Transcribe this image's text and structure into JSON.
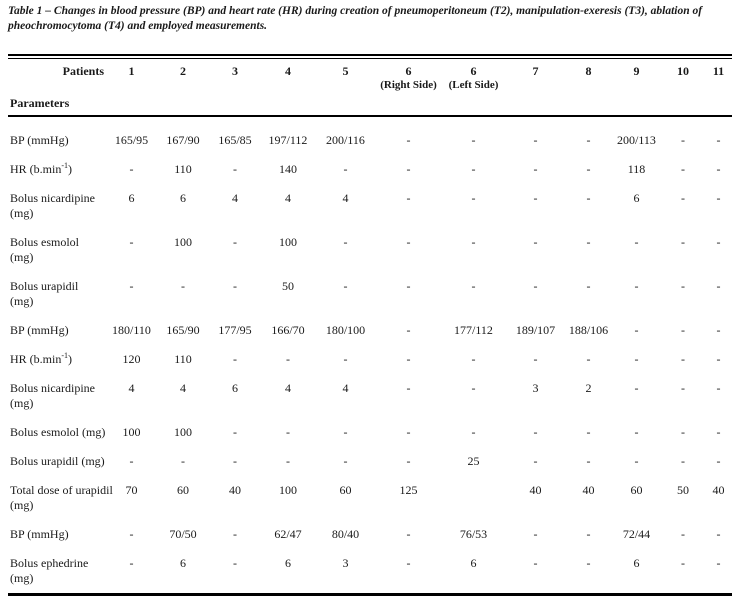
{
  "colors": {
    "ink": "#1a1a1a",
    "background": "#ffffff"
  },
  "caption": {
    "title": "Table 1",
    "text": "– Changes in blood pressure (BP) and heart rate (HR) during creation of pneumoperitoneum (T2), manipulation-exeresis (T3), ablation of pheochromocytoma (T4) and employed measurements."
  },
  "table": {
    "patients_label": "Patients",
    "parameters_label": "Parameters",
    "columns": [
      {
        "n": "1",
        "side": ""
      },
      {
        "n": "2",
        "side": ""
      },
      {
        "n": "3",
        "side": ""
      },
      {
        "n": "4",
        "side": ""
      },
      {
        "n": "5",
        "side": ""
      },
      {
        "n": "6",
        "side": "(Right Side)"
      },
      {
        "n": "6",
        "side": "(Left Side)"
      },
      {
        "n": "7",
        "side": ""
      },
      {
        "n": "8",
        "side": ""
      },
      {
        "n": "9",
        "side": ""
      },
      {
        "n": "10",
        "side": ""
      },
      {
        "n": "11",
        "side": ""
      }
    ],
    "rows": [
      {
        "label": "BP (mmHg)",
        "values": [
          "165/95",
          "167/90",
          "165/85",
          "197/112",
          "200/116",
          "-",
          "-",
          "-",
          "-",
          "200/113",
          "-",
          "-"
        ]
      },
      {
        "label": "HR (b.min",
        "sup": "-1",
        "after": ")",
        "values": [
          "-",
          "110",
          "-",
          "140",
          "-",
          "-",
          "-",
          "-",
          "-",
          "118",
          "-",
          "-"
        ]
      },
      {
        "label": "Bolus nicardipine",
        "label2": "(mg)",
        "values": [
          "6",
          "6",
          "4",
          "4",
          "4",
          "-",
          "-",
          "-",
          "-",
          "6",
          "-",
          "-"
        ]
      },
      {
        "label": "Bolus esmolol",
        "label2": "(mg)",
        "values": [
          "-",
          "100",
          "-",
          "100",
          "-",
          "-",
          "-",
          "-",
          "-",
          "-",
          "-",
          "-"
        ]
      },
      {
        "label": "Bolus urapidil",
        "label2": "(mg)",
        "values": [
          "-",
          "-",
          "-",
          "50",
          "-",
          "-",
          "-",
          "-",
          "-",
          "-",
          "-",
          "-"
        ]
      },
      {
        "label": "BP (mmHg)",
        "values": [
          "180/110",
          "165/90",
          "177/95",
          "166/70",
          "180/100",
          "-",
          "177/112",
          "189/107",
          "188/106",
          "-",
          "-",
          "-"
        ]
      },
      {
        "label": "HR (b.min",
        "sup": "-1",
        "after": ")",
        "values": [
          "120",
          "110",
          "-",
          "-",
          "-",
          "-",
          "-",
          "-",
          "-",
          "-",
          "-",
          "-"
        ]
      },
      {
        "label": "Bolus nicardipine",
        "label2": "(mg)",
        "values": [
          "4",
          "4",
          "6",
          "4",
          "4",
          "-",
          "-",
          "3",
          "2",
          "-",
          "-",
          "-"
        ]
      },
      {
        "label": "Bolus esmolol (mg)",
        "values": [
          "100",
          "100",
          "-",
          "-",
          "-",
          "-",
          "-",
          "-",
          "-",
          "-",
          "-",
          "-"
        ]
      },
      {
        "label": "Bolus urapidil (mg)",
        "values": [
          "-",
          "-",
          "-",
          "-",
          "-",
          "-",
          "25",
          "-",
          "-",
          "-",
          "-",
          "-"
        ]
      },
      {
        "label": "Total dose of urapidil",
        "label2": "(mg)",
        "values": [
          "70",
          "60",
          "40",
          "100",
          "60",
          "125",
          "",
          "40",
          "40",
          "60",
          "50",
          "40"
        ]
      },
      {
        "label": "BP (mmHg)",
        "values": [
          "-",
          "70/50",
          "-",
          "62/47",
          "80/40",
          "-",
          "76/53",
          "-",
          "-",
          "72/44",
          "-",
          "-"
        ]
      },
      {
        "label": "Bolus ephedrine",
        "label2": "(mg)",
        "values": [
          "-",
          "6",
          "-",
          "6",
          "3",
          "-",
          "6",
          "-",
          "-",
          "6",
          "-",
          "-"
        ]
      }
    ]
  }
}
